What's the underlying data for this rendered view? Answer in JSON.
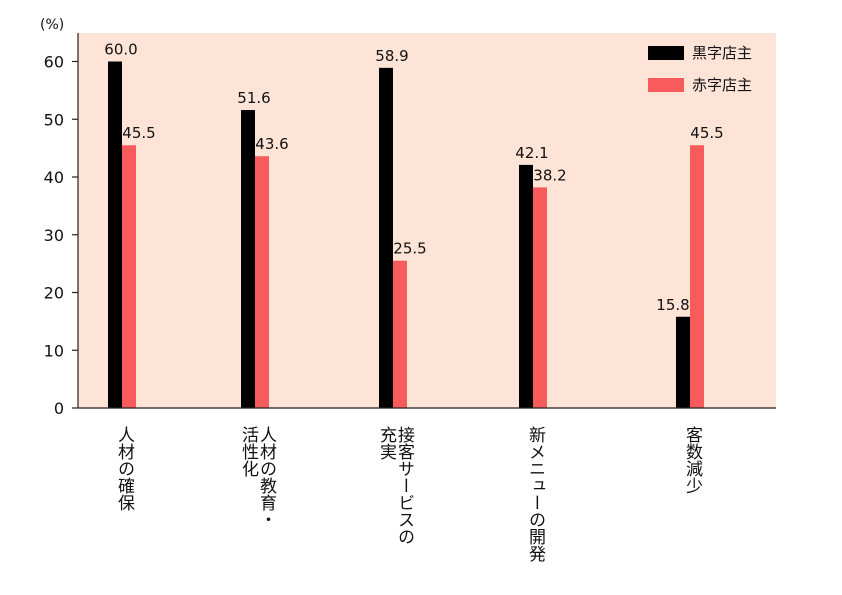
{
  "chart_data": {
    "type": "bar",
    "unit_label": "(%)",
    "ylim": [
      0,
      60
    ],
    "yticks": [
      0,
      10,
      20,
      30,
      40,
      50,
      60
    ],
    "categories": [
      "人材の確保",
      "人材の教育・\n活性化",
      "接客サービスの\n充実",
      "新メニューの開発",
      "客数減少"
    ],
    "series": [
      {
        "name": "黒字店主",
        "color": "#000000",
        "values": [
          60.0,
          51.6,
          58.9,
          42.1,
          15.8
        ],
        "labels": [
          "60.0",
          "51.6",
          "58.9",
          "42.1",
          "15.8"
        ]
      },
      {
        "name": "赤字店主",
        "color": "#f75b5b",
        "values": [
          45.5,
          43.6,
          25.5,
          38.2,
          45.5
        ],
        "labels": [
          "45.5",
          "43.6",
          "25.5",
          "38.2",
          "45.5"
        ]
      }
    ],
    "legend": "top-right",
    "background_color": "#fde4d6",
    "grid": false
  }
}
